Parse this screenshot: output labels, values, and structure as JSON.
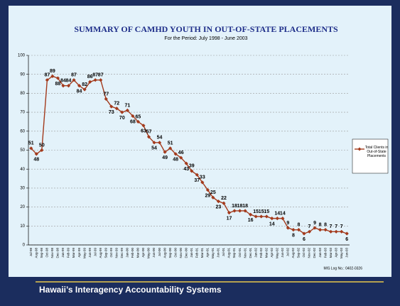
{
  "chart_data": {
    "type": "line",
    "title": "SUMMARY OF CAMHD YOUTH IN OUT-OF-STATE PLACEMENTS",
    "subtitle": "For the Period: July 1998 - June 2003",
    "categories": [
      "Jul-98",
      "Aug-98",
      "Sep-98",
      "Oct-98",
      "Nov-98",
      "Dec-98",
      "Jan-99",
      "Feb-99",
      "Mar-99",
      "Apr-99",
      "May-99",
      "Jun-99",
      "Jul-99",
      "Aug-99",
      "Sep-99",
      "Oct-99",
      "Nov-99",
      "Dec-99",
      "Jan-00",
      "Feb-00",
      "Mar-00",
      "Apr-00",
      "May-00",
      "Jun-00",
      "Jul-00",
      "Aug-00",
      "Sep-00",
      "Oct-00",
      "Nov-00",
      "Dec-00",
      "Jan-01",
      "Feb-01",
      "Mar-01",
      "Apr-01",
      "May-01",
      "Jun-01",
      "Jul-01",
      "Aug-01",
      "Sep-01",
      "Oct-01",
      "Nov-01",
      "Dec-01",
      "Jan-02",
      "Feb-02",
      "Mar-02",
      "Apr-02",
      "May-02",
      "Jun-02",
      "Jul-02",
      "Aug-02",
      "Sep-02",
      "Oct-02",
      "Nov-02",
      "Dec-02",
      "Jan-03",
      "Feb-03",
      "Mar-03",
      "Apr-03",
      "May-03",
      "Jun-03"
    ],
    "series": [
      {
        "name": "Total Clients in Out-of-State Placements",
        "color": "#a33a1c",
        "values": [
          51,
          48,
          50,
          87,
          89,
          88,
          84,
          84,
          87,
          84,
          82,
          86,
          87,
          87,
          77,
          73,
          72,
          70,
          71,
          68,
          65,
          63,
          57,
          54,
          54,
          49,
          51,
          48,
          46,
          43,
          39,
          37,
          33,
          29,
          25,
          23,
          22,
          17,
          18,
          18,
          18,
          16,
          15,
          15,
          15,
          14,
          14,
          14,
          9,
          8,
          8,
          6,
          7,
          9,
          8,
          8,
          7,
          7,
          7,
          6
        ]
      }
    ],
    "ylim": [
      0,
      100
    ],
    "yticks": [
      0,
      10,
      20,
      30,
      40,
      50,
      60,
      70,
      80,
      90,
      100
    ],
    "grid": true,
    "legend": "right",
    "note": "MIS Log No.: 0402-0326"
  },
  "footer": {
    "text": "Hawaii’s Interagency Accountability Systems"
  }
}
